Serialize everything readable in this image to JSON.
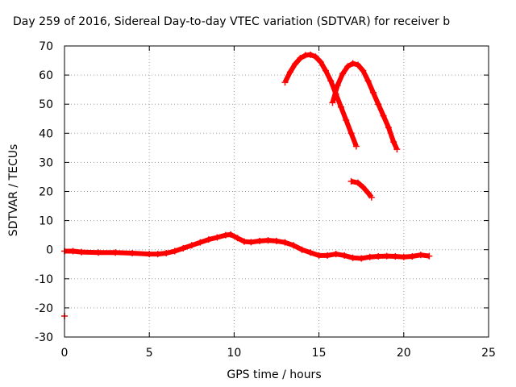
{
  "chart_data": {
    "type": "scatter",
    "title": "Day 259 of 2016, Sidereal Day-to-day VTEC variation (SDTVAR) for receiver b",
    "xlabel": "GPS time / hours",
    "ylabel": "SDTVAR / TECUs",
    "xlim": [
      0,
      25
    ],
    "ylim": [
      -30,
      70
    ],
    "xticks": [
      "0",
      "5",
      "10",
      "15",
      "20",
      "25"
    ],
    "yticks": [
      "-30",
      "-20",
      "-10",
      "0",
      "10",
      "20",
      "30",
      "40",
      "50",
      "60",
      "70"
    ],
    "grid": true,
    "legend": "none",
    "series": [
      {
        "color": "#ff0000",
        "x": [
          0.0,
          0.5,
          1.0,
          2.0,
          3.0,
          4.0,
          5.0,
          5.5,
          6.0,
          6.5,
          7.0,
          7.5,
          8.0,
          8.5,
          9.0,
          9.5,
          9.8,
          10.2,
          10.6,
          11.0,
          11.5,
          12.0,
          12.5,
          13.0,
          13.5,
          14.0,
          14.5,
          15.0,
          15.5,
          16.0,
          16.5,
          17.0,
          17.5,
          18.0,
          18.5,
          19.0,
          19.5,
          20.0,
          20.5,
          21.0,
          21.5
        ],
        "y": [
          -0.5,
          -0.5,
          -0.8,
          -1.0,
          -1.0,
          -1.2,
          -1.5,
          -1.5,
          -1.2,
          -0.5,
          0.5,
          1.5,
          2.5,
          3.5,
          4.2,
          5.0,
          5.2,
          4.0,
          2.8,
          2.6,
          3.0,
          3.2,
          3.0,
          2.5,
          1.5,
          0.0,
          -1.0,
          -2.0,
          -2.0,
          -1.5,
          -2.0,
          -2.8,
          -3.0,
          -2.5,
          -2.3,
          -2.2,
          -2.3,
          -2.5,
          -2.3,
          -1.8,
          -2.2
        ]
      },
      {
        "color": "#ff0000",
        "x": [
          13.0,
          13.3,
          13.6,
          13.9,
          14.2,
          14.5,
          14.8,
          15.1,
          15.4,
          15.7,
          16.0,
          16.3,
          16.6,
          16.9,
          17.2
        ],
        "y": [
          57.5,
          61.0,
          63.8,
          65.8,
          66.8,
          67.0,
          66.3,
          64.5,
          61.5,
          58.0,
          53.5,
          49.0,
          44.5,
          40.0,
          35.5
        ]
      },
      {
        "color": "#ff0000",
        "x": [
          15.8,
          16.1,
          16.4,
          16.7,
          17.0,
          17.3,
          17.6,
          17.9,
          18.2,
          18.5,
          18.8,
          19.1,
          19.4,
          19.6
        ],
        "y": [
          50.5,
          56.5,
          60.5,
          63.0,
          64.0,
          63.5,
          61.5,
          58.0,
          54.0,
          50.0,
          46.0,
          42.0,
          37.0,
          34.5
        ]
      },
      {
        "color": "#ff0000",
        "x": [
          16.9,
          17.3,
          17.6,
          17.9,
          18.1
        ],
        "y": [
          23.5,
          23.0,
          21.5,
          19.5,
          18.0
        ]
      },
      {
        "color": "#ff0000",
        "x": [
          0.0
        ],
        "y": [
          -22.8
        ]
      }
    ]
  }
}
